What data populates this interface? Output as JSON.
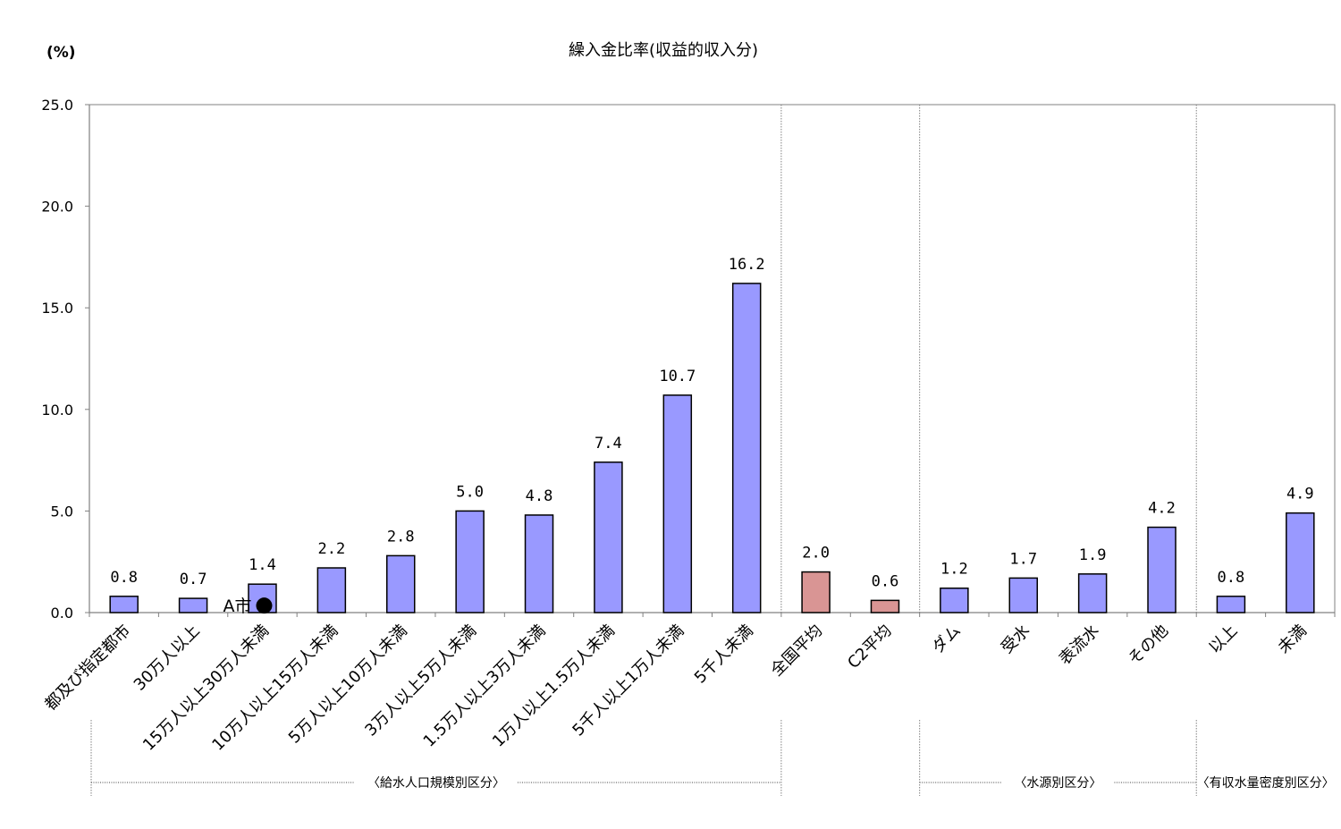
{
  "chart_data": {
    "type": "bar",
    "title": "繰入金比率(収益的収入分)",
    "unit_label": "(%)",
    "ylim": [
      0,
      25
    ],
    "yticks": [
      "0.0",
      "5.0",
      "10.0",
      "15.0",
      "20.0",
      "25.0"
    ],
    "grid": false,
    "categories": [
      "都及び指定都市",
      "30万人以上",
      "15万人以上30万人未満",
      "10万人以上15万人未満",
      "5万人以上10万人未満",
      "3万人以上5万人未満",
      "1.5万人以上3万人未満",
      "1万人以上1.5万人未満",
      "5千人以上1万人未満",
      "5千人未満",
      "全国平均",
      "C2平均",
      "ダム",
      "受水",
      "表流水",
      "その他",
      "以上",
      "未満"
    ],
    "values": [
      0.8,
      0.7,
      1.4,
      2.2,
      2.8,
      5.0,
      4.8,
      7.4,
      10.7,
      16.2,
      2.0,
      0.6,
      1.2,
      1.7,
      1.9,
      4.2,
      0.8,
      4.9
    ],
    "value_labels": [
      "0.8",
      "0.7",
      "1.4",
      "2.2",
      "2.8",
      "5.0",
      "4.8",
      "7.4",
      "10.7",
      "16.2",
      "2.0",
      "0.6",
      "1.2",
      "1.7",
      "1.9",
      "4.2",
      "0.8",
      "4.9"
    ],
    "bar_kinds": [
      "group",
      "group",
      "group",
      "group",
      "group",
      "group",
      "group",
      "group",
      "group",
      "group",
      "average",
      "average",
      "group",
      "group",
      "group",
      "group",
      "group",
      "group"
    ],
    "colors": {
      "group": "#9999ff",
      "average": "#d99594",
      "outline": "#000000",
      "divider": "#808080"
    },
    "groups": [
      {
        "label": "〈給水人口規模別区分〉",
        "start": 0,
        "end": 9
      },
      {
        "label": "〈水源別区分〉",
        "start": 12,
        "end": 15
      },
      {
        "label": "〈有収水量密度別区分〉",
        "start": 16,
        "end": 17
      }
    ],
    "dividers_after": [
      9,
      11,
      15
    ],
    "marker": {
      "label": "A市",
      "value": 0.3,
      "category_index": 2,
      "symbol": "●"
    }
  }
}
